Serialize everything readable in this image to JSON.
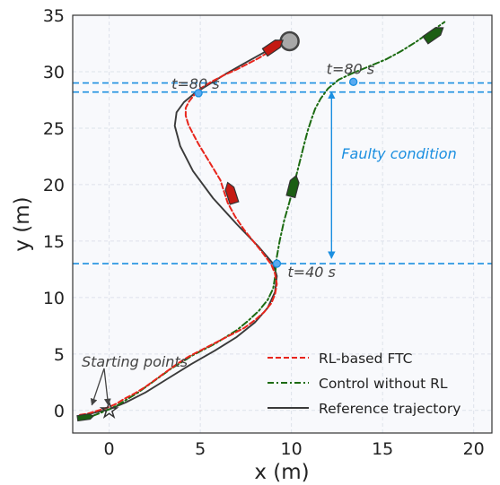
{
  "chart_data": {
    "type": "line",
    "xlabel": "x (m)",
    "ylabel": "y (m)",
    "xlim": [
      -2,
      21
    ],
    "ylim": [
      -2,
      35
    ],
    "xticks": [
      0,
      5,
      10,
      15,
      20
    ],
    "yticks": [
      0,
      5,
      10,
      15,
      20,
      25,
      30,
      35
    ],
    "grid": true,
    "legend_position": "lower-right",
    "colors": {
      "rl": "#e8251c",
      "norl": "#1c6b12",
      "ref": "#3a3a3a",
      "annotation": "#1b8fe0",
      "marker_fill": "#5aaaf0",
      "vessel_rl": "#c41a12",
      "vessel_norl": "#1c5e14",
      "target": "#a8a8a8"
    },
    "series": [
      {
        "name": "RL-based FTC",
        "style": "dashed",
        "x": [
          -1.6,
          -1.2,
          -0.8,
          -0.4,
          0.0,
          0.4,
          0.8,
          1.4,
          2.0,
          2.6,
          3.2,
          3.8,
          4.4,
          5.0,
          5.6,
          6.2,
          6.8,
          7.4,
          8.0,
          8.5,
          8.9,
          9.1,
          9.2,
          9.1,
          8.9,
          8.4,
          7.9,
          7.4,
          6.9,
          6.5,
          6.3,
          6.1,
          5.8,
          5.5,
          5.2,
          4.9,
          4.6,
          4.35,
          4.2,
          4.2,
          4.4,
          4.7,
          5.0,
          5.6,
          6.3,
          7.0,
          7.6,
          8.2,
          8.8,
          9.3,
          9.8,
          10.2
        ],
        "y": [
          -0.4,
          -0.3,
          -0.1,
          0.1,
          0.3,
          0.6,
          1.0,
          1.5,
          2.1,
          2.8,
          3.5,
          4.2,
          4.8,
          5.3,
          5.8,
          6.3,
          6.8,
          7.3,
          8.0,
          8.7,
          9.5,
          10.3,
          11.2,
          12.1,
          12.9,
          14.0,
          15.0,
          16.0,
          17.2,
          18.4,
          19.4,
          20.4,
          21.2,
          22.0,
          22.8,
          23.6,
          24.5,
          25.3,
          26.1,
          26.8,
          27.4,
          28.0,
          28.5,
          29.1,
          29.7,
          30.2,
          30.7,
          31.2,
          31.8,
          32.4,
          33.0,
          33.4
        ]
      },
      {
        "name": "Control without RL",
        "style": "dashdot",
        "x": [
          -1.6,
          -1.1,
          -0.6,
          0.0,
          0.5,
          1.0,
          1.6,
          2.2,
          2.8,
          3.4,
          4.0,
          4.6,
          5.2,
          5.8,
          6.4,
          7.0,
          7.6,
          8.2,
          8.7,
          9.0,
          9.1,
          9.15,
          9.2,
          9.35,
          9.6,
          9.9,
          10.1,
          10.3,
          10.5,
          10.7,
          10.9,
          11.1,
          11.3,
          11.6,
          12.0,
          12.6,
          13.4,
          14.3,
          15.2,
          16.0,
          16.8,
          17.6,
          18.4
        ],
        "y": [
          -0.8,
          -0.6,
          -0.3,
          0.1,
          0.5,
          1.0,
          1.6,
          2.3,
          3.0,
          3.7,
          4.3,
          4.9,
          5.4,
          5.9,
          6.5,
          7.1,
          7.9,
          8.8,
          9.8,
          10.8,
          11.8,
          12.9,
          13.6,
          15.0,
          16.8,
          18.5,
          19.8,
          21.0,
          22.3,
          23.6,
          24.8,
          25.8,
          26.7,
          27.6,
          28.5,
          29.3,
          29.9,
          30.5,
          31.1,
          31.8,
          32.6,
          33.5,
          34.4
        ]
      },
      {
        "name": "Reference trajectory",
        "style": "solid",
        "x": [
          -1.6,
          -0.8,
          0.0,
          0.9,
          2.0,
          3.2,
          4.5,
          5.8,
          7.0,
          8.0,
          8.7,
          9.1,
          9.2,
          9.0,
          8.2,
          7.0,
          5.7,
          4.6,
          3.9,
          3.6,
          3.7,
          4.1,
          4.7,
          5.5,
          6.5,
          7.6,
          8.6,
          9.5,
          10.2
        ],
        "y": [
          -0.5,
          -0.2,
          0.1,
          0.7,
          1.6,
          2.8,
          4.1,
          5.3,
          6.5,
          7.8,
          9.1,
          10.5,
          11.9,
          13.0,
          14.5,
          16.5,
          18.8,
          21.2,
          23.4,
          25.2,
          26.4,
          27.3,
          28.1,
          28.9,
          29.9,
          30.9,
          31.8,
          32.6,
          33.2
        ]
      }
    ],
    "hlines": [
      13.0,
      28.2,
      29.0
    ],
    "events": [
      {
        "label": "t=80 s",
        "x": 4.9,
        "y": 28.1
      },
      {
        "label": "t=80 s",
        "x": 13.4,
        "y": 29.1
      },
      {
        "label": "t=40 s",
        "x": 9.2,
        "y": 13.0
      }
    ],
    "faulty_condition": {
      "label": "Faulty condition",
      "x": 12.2,
      "y_from": 13.0,
      "y_to": 28.6
    },
    "starting_points": {
      "label": "Starting points",
      "points": [
        [
          -0.9,
          0.0
        ],
        [
          0.0,
          0.0
        ]
      ]
    },
    "target": {
      "x": 9.9,
      "y": 32.7
    },
    "vessels": [
      {
        "series": "RL-based FTC",
        "x": 6.7,
        "y": 19.2
      },
      {
        "series": "RL-based FTC",
        "x": 9.0,
        "y": 32.2
      },
      {
        "series": "Control without RL",
        "x": 10.1,
        "y": 19.8
      },
      {
        "series": "Control without RL",
        "x": 17.8,
        "y": 33.3
      }
    ]
  }
}
